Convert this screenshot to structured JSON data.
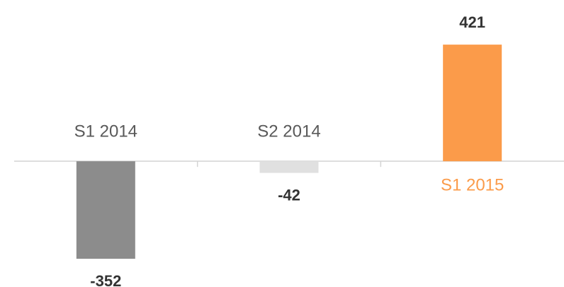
{
  "chart_data": {
    "type": "bar",
    "categories": [
      "S1 2014",
      "S2 2014",
      "S1 2015"
    ],
    "values": [
      -352,
      -42,
      421
    ],
    "colors": [
      "#8c8c8c",
      "#e0e0e0",
      "#fb9b4a"
    ],
    "category_colors": [
      "#595959",
      "#595959",
      "#fb9b4a"
    ],
    "ylim": [
      -450,
      480
    ]
  }
}
